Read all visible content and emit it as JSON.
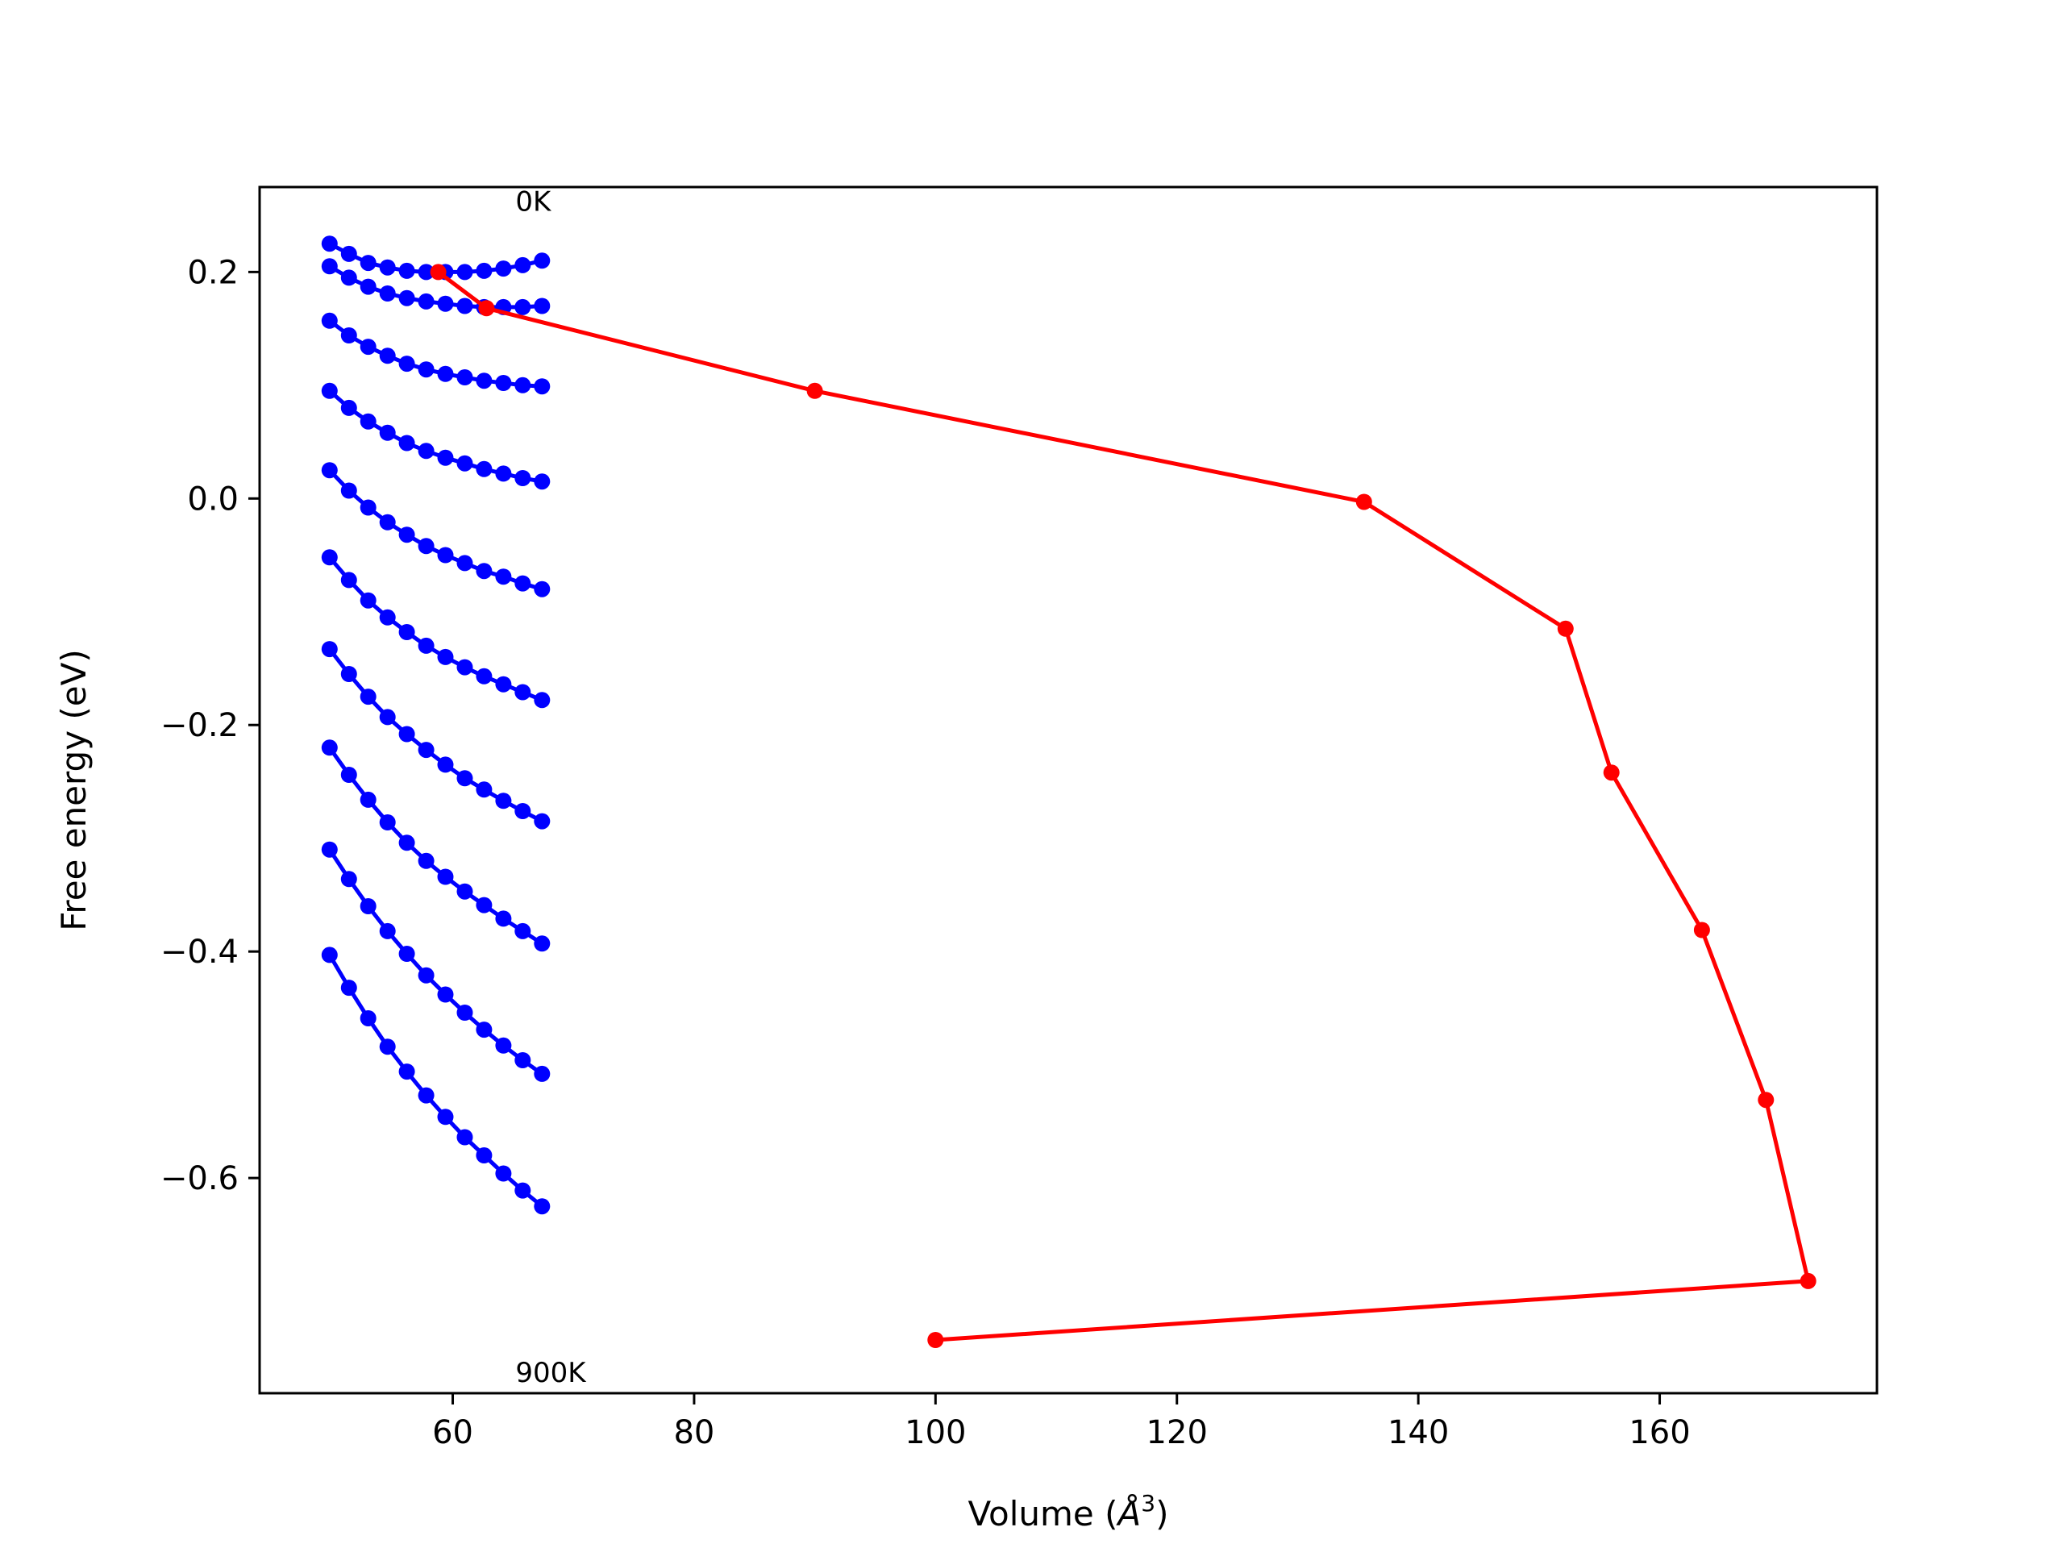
{
  "chart_data": {
    "type": "line",
    "title": "",
    "xlabel": "Volume (",
    "xlabel_sup_base": "Å",
    "xlabel_sup": "3",
    "xlabel_end": ")",
    "ylabel": "Free energy (eV)",
    "xlim": [
      44,
      178
    ],
    "ylim": [
      -0.79,
      0.275
    ],
    "xticks": [
      {
        "value": 60,
        "label": "60"
      },
      {
        "value": 80,
        "label": "80"
      },
      {
        "value": 100,
        "label": "100"
      },
      {
        "value": 120,
        "label": "120"
      },
      {
        "value": 140,
        "label": "140"
      },
      {
        "value": 160,
        "label": "160"
      }
    ],
    "yticks": [
      {
        "value": 0.2,
        "label": "0.2"
      },
      {
        "value": 0.0,
        "label": "0.0"
      },
      {
        "value": -0.2,
        "label": "−0.2"
      },
      {
        "value": -0.4,
        "label": "−0.4"
      },
      {
        "value": -0.6,
        "label": "−0.6"
      }
    ],
    "grid": false,
    "legend": "none",
    "annotations": [
      {
        "text": "0K",
        "x": 65.2,
        "y": 0.254
      },
      {
        "text": "900K",
        "x": 65.2,
        "y": -0.78
      }
    ],
    "colors": {
      "curves": "#0000ff",
      "minima": "#ff0000"
    },
    "curve_x": [
      49.8,
      51.4,
      53.0,
      54.6,
      56.2,
      57.8,
      59.4,
      61.0,
      62.6,
      64.2,
      65.8,
      67.4
    ],
    "curves": [
      {
        "values": [
          0.225,
          0.216,
          0.208,
          0.204,
          0.201,
          0.2,
          0.2,
          0.2,
          0.201,
          0.203,
          0.206,
          0.21
        ]
      },
      {
        "values": [
          0.205,
          0.195,
          0.187,
          0.181,
          0.177,
          0.174,
          0.172,
          0.17,
          0.169,
          0.169,
          0.169,
          0.17
        ]
      },
      {
        "values": [
          0.157,
          0.144,
          0.134,
          0.126,
          0.119,
          0.114,
          0.11,
          0.107,
          0.104,
          0.102,
          0.1,
          0.099
        ]
      },
      {
        "values": [
          0.095,
          0.08,
          0.068,
          0.058,
          0.049,
          0.042,
          0.036,
          0.031,
          0.026,
          0.022,
          0.018,
          0.015
        ]
      },
      {
        "values": [
          0.025,
          0.007,
          -0.008,
          -0.021,
          -0.032,
          -0.042,
          -0.05,
          -0.057,
          -0.064,
          -0.069,
          -0.075,
          -0.08
        ]
      },
      {
        "values": [
          -0.052,
          -0.072,
          -0.09,
          -0.105,
          -0.118,
          -0.13,
          -0.14,
          -0.149,
          -0.157,
          -0.164,
          -0.171,
          -0.178
        ]
      },
      {
        "values": [
          -0.133,
          -0.155,
          -0.175,
          -0.193,
          -0.208,
          -0.222,
          -0.235,
          -0.247,
          -0.257,
          -0.267,
          -0.276,
          -0.285
        ]
      },
      {
        "values": [
          -0.22,
          -0.244,
          -0.266,
          -0.286,
          -0.304,
          -0.32,
          -0.334,
          -0.347,
          -0.359,
          -0.371,
          -0.382,
          -0.393
        ]
      },
      {
        "values": [
          -0.31,
          -0.336,
          -0.36,
          -0.382,
          -0.402,
          -0.421,
          -0.438,
          -0.454,
          -0.469,
          -0.483,
          -0.496,
          -0.508
        ]
      },
      {
        "values": [
          -0.403,
          -0.432,
          -0.459,
          -0.484,
          -0.506,
          -0.527,
          -0.546,
          -0.564,
          -0.58,
          -0.596,
          -0.611,
          -0.625
        ]
      }
    ],
    "minima": {
      "x": [
        58.8,
        62.8,
        90.0,
        135.5,
        152.2,
        156.0,
        163.5,
        168.8,
        172.3,
        100.0
      ],
      "y": [
        0.2,
        0.168,
        0.095,
        -0.003,
        -0.115,
        -0.242,
        -0.381,
        -0.531,
        -0.691,
        -0.743
      ]
    }
  }
}
